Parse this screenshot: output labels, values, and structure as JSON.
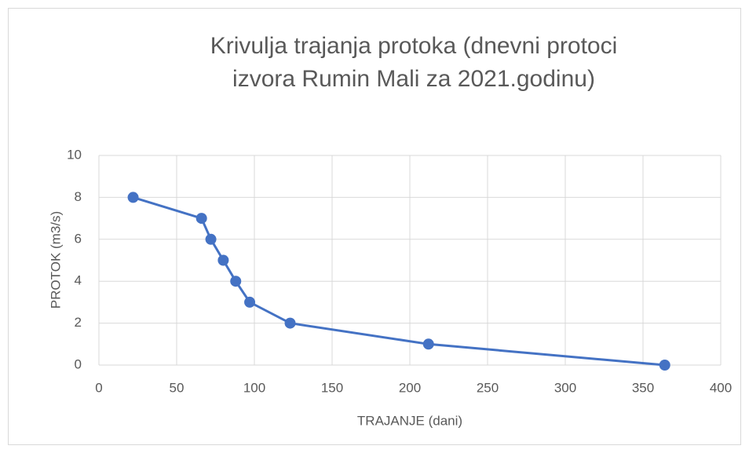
{
  "chart_data": {
    "type": "scatter",
    "title": "Krivulja trajanja protoka (dnevni protoci izvora Rumin Mali za 2021.godinu)",
    "xlabel": "TRAJANJE (dani)",
    "ylabel": "PROTOK (m3/s)",
    "series": [
      {
        "name": "PROTOK",
        "color": "#4472c4",
        "x": [
          22,
          66,
          72,
          80,
          88,
          97,
          123,
          212,
          364
        ],
        "values": [
          8,
          7,
          6,
          5,
          4,
          3,
          2,
          1,
          0
        ]
      }
    ],
    "xlim": [
      0,
      400
    ],
    "xticks": [
      0,
      50,
      100,
      150,
      200,
      250,
      300,
      350,
      400
    ],
    "ylim": [
      0,
      10
    ],
    "yticks": [
      0,
      2,
      4,
      6,
      8,
      10
    ],
    "grid": true
  }
}
